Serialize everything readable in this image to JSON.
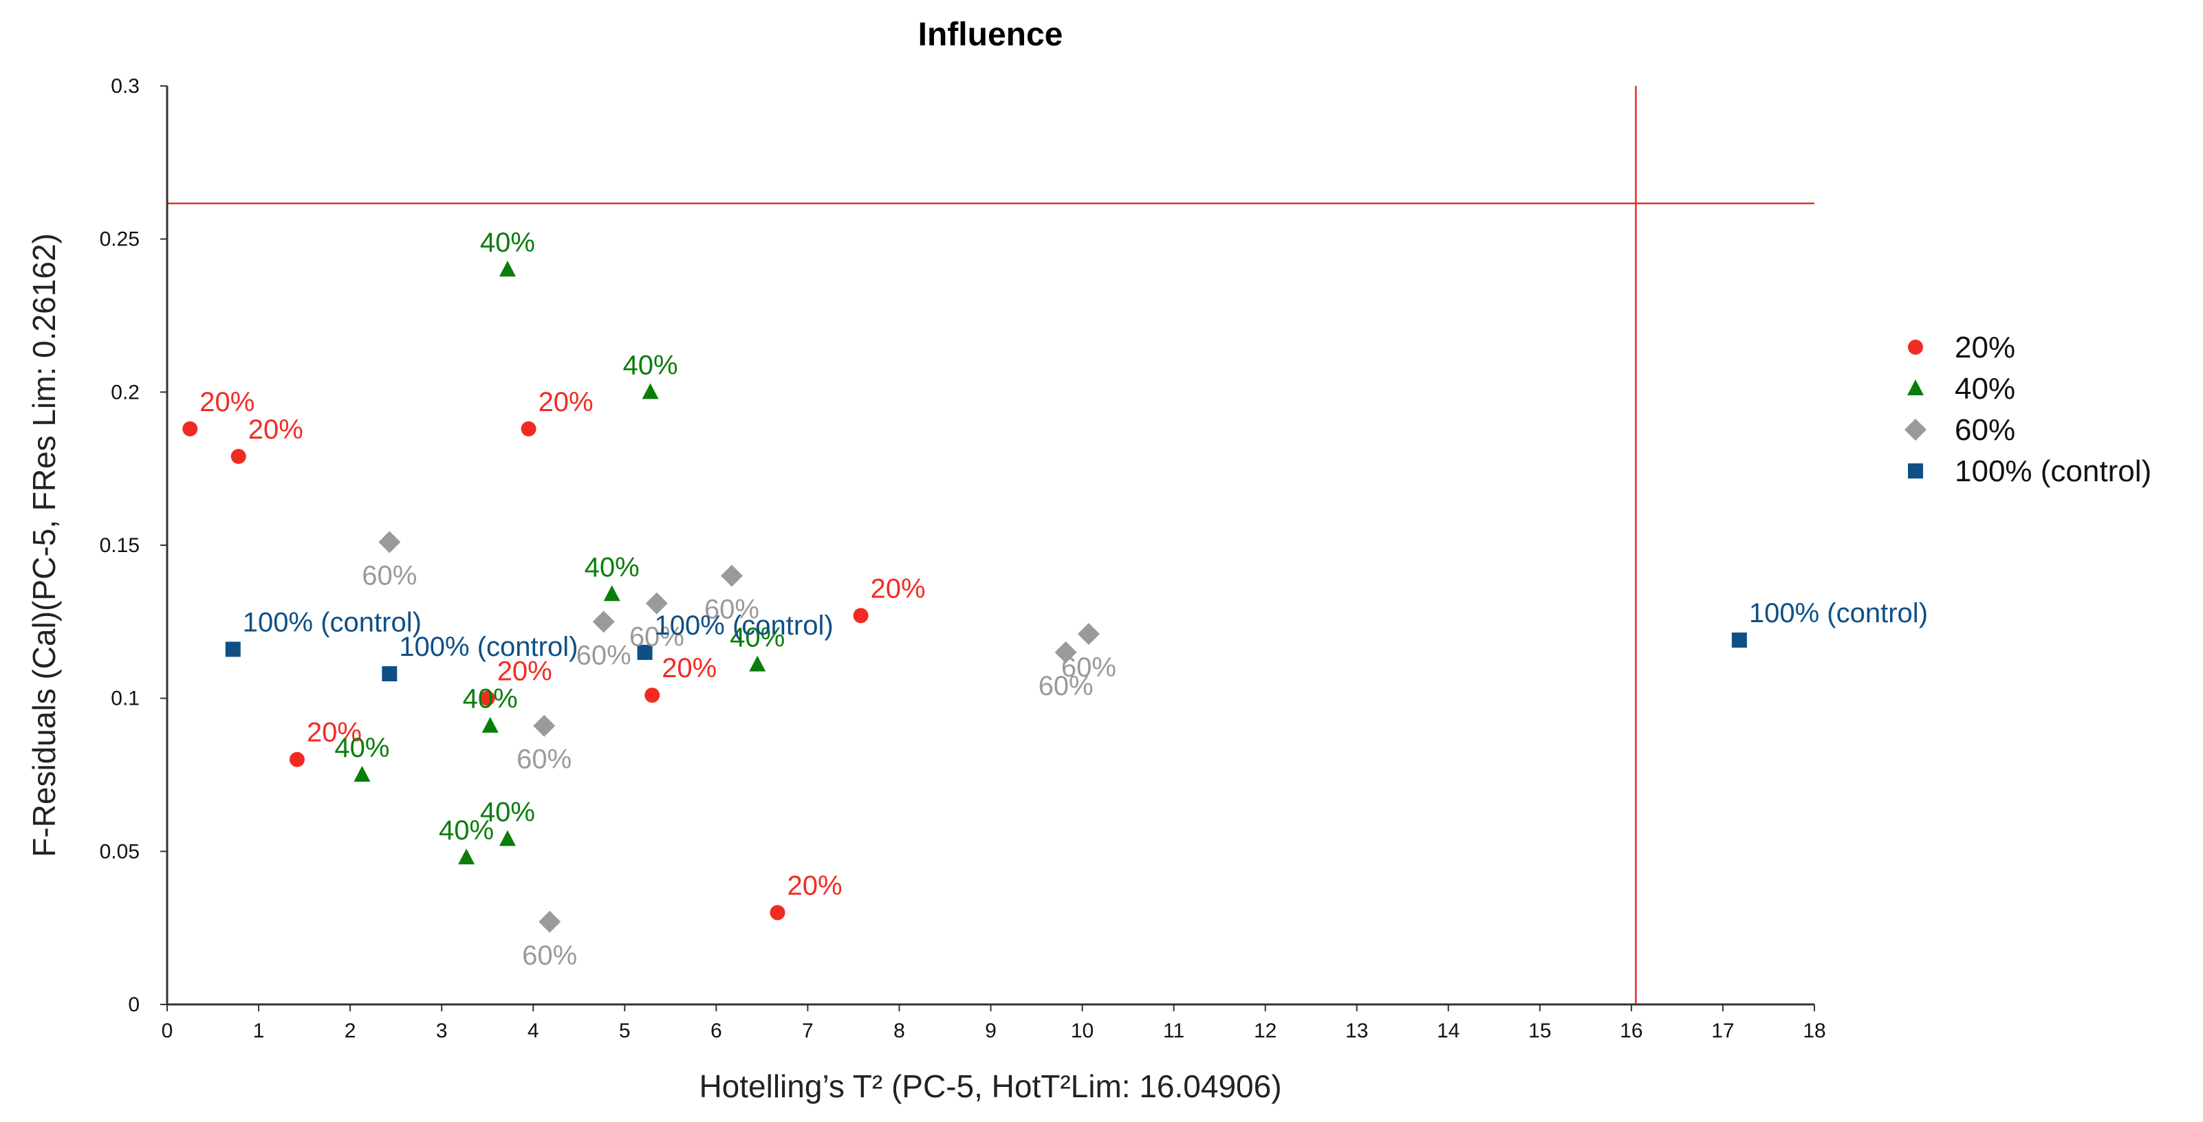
{
  "chart_data": {
    "type": "scatter",
    "title": "Influence",
    "xlabel": "Hotelling’s T² (PC-5, HotT²Lim: 16.04906)",
    "ylabel": "F-Residuals (Cal)(PC-5, FRes Lim: 0.26162)",
    "xlim": [
      0,
      18
    ],
    "ylim": [
      0,
      0.3
    ],
    "x_ticks": [
      "0",
      "1",
      "2",
      "3",
      "4",
      "5",
      "6",
      "7",
      "8",
      "9",
      "10",
      "11",
      "12",
      "13",
      "14",
      "15",
      "16",
      "17",
      "18"
    ],
    "y_ticks": [
      "0",
      "0.05",
      "0.1",
      "0.15",
      "0.2",
      "0.25",
      "0.3"
    ],
    "limit_lines": {
      "vertical_x": 16.04906,
      "horizontal_y": 0.26162,
      "color": "#e8302a"
    },
    "series": [
      {
        "name": "20%",
        "marker": "circle",
        "color": "#f22b22",
        "label_color": "#f22b22",
        "points": [
          {
            "x": 0.25,
            "y": 0.188,
            "label": "20%"
          },
          {
            "x": 0.78,
            "y": 0.179,
            "label": "20%"
          },
          {
            "x": 3.95,
            "y": 0.188,
            "label": "20%"
          },
          {
            "x": 7.58,
            "y": 0.127,
            "label": "20%"
          },
          {
            "x": 3.5,
            "y": 0.1,
            "label": "20%"
          },
          {
            "x": 5.3,
            "y": 0.101,
            "label": "20%"
          },
          {
            "x": 1.42,
            "y": 0.08,
            "label": "20%"
          },
          {
            "x": 6.67,
            "y": 0.03,
            "label": "20%"
          }
        ]
      },
      {
        "name": "40%",
        "marker": "triangle",
        "color": "#0a7d0a",
        "label_color": "#0a7d0a",
        "points": [
          {
            "x": 3.72,
            "y": 0.24,
            "label": "40%"
          },
          {
            "x": 5.28,
            "y": 0.2,
            "label": "40%"
          },
          {
            "x": 4.86,
            "y": 0.134,
            "label": "40%"
          },
          {
            "x": 6.45,
            "y": 0.111,
            "label": "40%"
          },
          {
            "x": 3.53,
            "y": 0.091,
            "label": "40%"
          },
          {
            "x": 2.13,
            "y": 0.075,
            "label": "40%"
          },
          {
            "x": 3.72,
            "y": 0.054,
            "label": "40%"
          },
          {
            "x": 3.27,
            "y": 0.048,
            "label": "40%"
          }
        ]
      },
      {
        "name": "60%",
        "marker": "diamond",
        "color": "#9a9a9a",
        "label_color": "#9a9a9a",
        "points": [
          {
            "x": 2.43,
            "y": 0.151,
            "label": "60%"
          },
          {
            "x": 6.17,
            "y": 0.14,
            "label": "60%"
          },
          {
            "x": 5.35,
            "y": 0.131,
            "label": "60%"
          },
          {
            "x": 4.77,
            "y": 0.125,
            "label": "60%"
          },
          {
            "x": 10.07,
            "y": 0.121,
            "label": "60%"
          },
          {
            "x": 9.82,
            "y": 0.115,
            "label": "60%"
          },
          {
            "x": 4.12,
            "y": 0.091,
            "label": "60%"
          },
          {
            "x": 4.18,
            "y": 0.027,
            "label": "60%"
          }
        ]
      },
      {
        "name": "100% (control)",
        "marker": "square",
        "color": "#0f4f86",
        "label_color": "#0f4f86",
        "points": [
          {
            "x": 0.72,
            "y": 0.116,
            "label": "100% (control)"
          },
          {
            "x": 2.43,
            "y": 0.108,
            "label": "100% (control)"
          },
          {
            "x": 5.22,
            "y": 0.115,
            "label": "100% (control)"
          },
          {
            "x": 17.18,
            "y": 0.119,
            "label": "100% (control)"
          }
        ]
      }
    ],
    "legend": {
      "placement": "right",
      "items": [
        "20%",
        "40%",
        "60%",
        "100% (control)"
      ]
    }
  }
}
